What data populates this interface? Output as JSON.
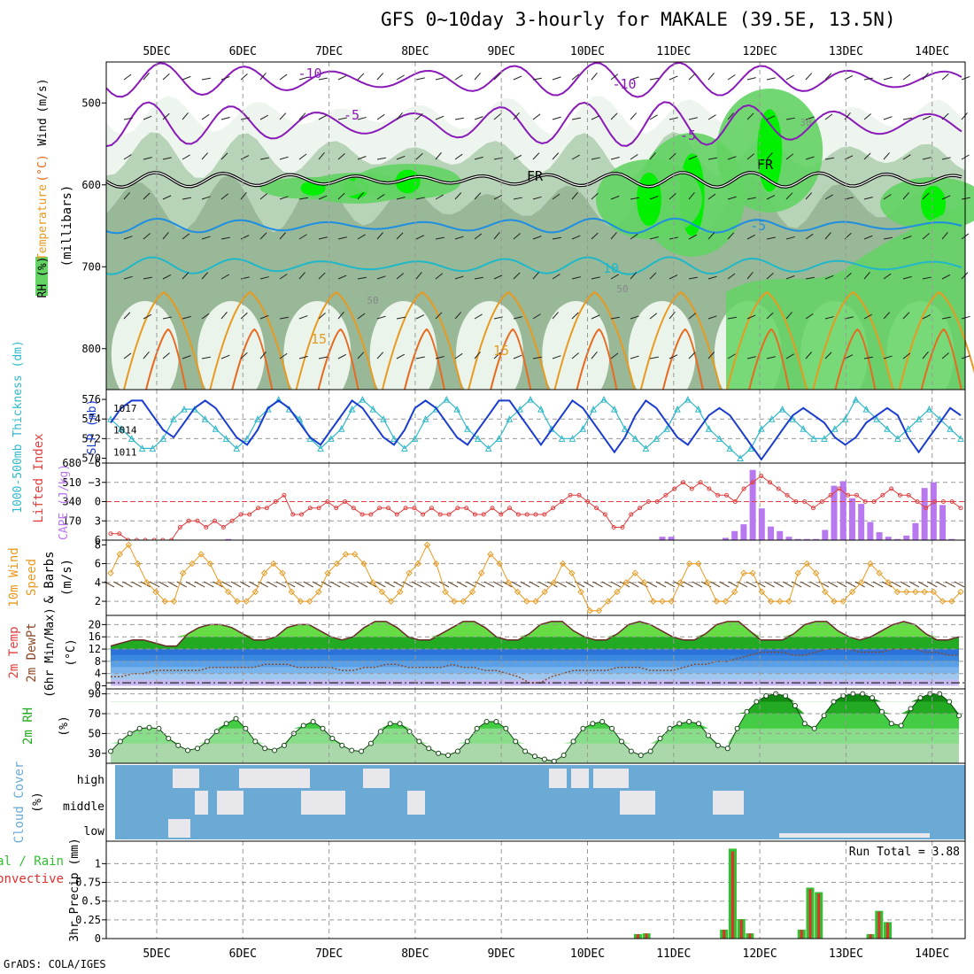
{
  "title": "GFS 0~10day 3-hourly for MAKALE (39.5E, 13.5N)",
  "credit": "GrADS: COLA/IGES",
  "dates": [
    "5DEC",
    "6DEC",
    "7DEC",
    "8DEC",
    "9DEC",
    "10DEC",
    "11DEC",
    "12DEC",
    "13DEC",
    "14DEC"
  ],
  "colors": {
    "rh_light": "#e8f4e8",
    "rh_mid": "#b8d4b8",
    "rh_dark": "#a8c2a8",
    "rh_green": "#63d363",
    "rh_bright": "#00f000",
    "temp_purple": "#8a1ab8",
    "temp_blue": "#1e8ee0",
    "temp_cyan": "#20b8c8",
    "temp_orange": "#e89a20",
    "temp_red": "#e86a20",
    "slp": "#1a3cd0",
    "thickness": "#30b8c8",
    "lifted": "#e04040",
    "cape": "#b878f0",
    "wind10": "#e89a20",
    "cloud_bg": "#6aaad4",
    "cloud_fill": "#e8e8ec",
    "precip_green": "#30c030",
    "precip_red": "#e03030"
  },
  "chart_data": [
    {
      "type": "area",
      "name": "upper-air",
      "ylabel_parts": [
        "RH (%)",
        "Temperature",
        "(°C)",
        "Wind",
        "(m/s)"
      ],
      "ylabel2": "(millibars)",
      "yticks": [
        500,
        600,
        700,
        800
      ],
      "ylim": [
        850,
        450
      ],
      "contour_labels": [
        {
          "text": "-10",
          "pos": "top-left"
        },
        {
          "text": "-10",
          "pos": "top-mid"
        },
        {
          "text": "-5",
          "pos": "upper-left"
        },
        {
          "text": "-5",
          "pos": "upper-mid"
        },
        {
          "text": "FR",
          "pos": "mid-left"
        },
        {
          "text": "FR",
          "pos": "mid-right"
        },
        {
          "text": "-5",
          "pos": "lower-right"
        },
        {
          "text": "10",
          "pos": "lower-right"
        },
        {
          "text": "15",
          "pos": "bottom-left"
        },
        {
          "text": "15",
          "pos": "bottom-mid"
        },
        {
          "text": "30",
          "pos": "right"
        },
        {
          "text": "50",
          "pos": "left"
        },
        {
          "text": "50",
          "pos": "mid"
        }
      ]
    },
    {
      "type": "line",
      "name": "slp-thickness",
      "ylabel_left": "1000-500mb Thickness (dm)",
      "ylabel_right": "SLP (mb)",
      "yticks_left": [
        570,
        572,
        574,
        576
      ],
      "yticks_right": [
        1011,
        1014,
        1017
      ],
      "slp": [
        1015,
        1017,
        1018,
        1018,
        1016,
        1014,
        1013,
        1015,
        1017,
        1018,
        1017,
        1015,
        1013,
        1012,
        1014,
        1017,
        1018,
        1017,
        1015,
        1013,
        1012,
        1014,
        1016,
        1018,
        1017,
        1015,
        1013,
        1012,
        1014,
        1017,
        1018,
        1017,
        1015,
        1013,
        1012,
        1014,
        1016,
        1018,
        1018,
        1016,
        1014,
        1012,
        1014,
        1016,
        1018,
        1017,
        1015,
        1013,
        1011,
        1013,
        1016,
        1018,
        1017,
        1015,
        1013,
        1012,
        1014,
        1016,
        1017,
        1016,
        1014,
        1012,
        1010,
        1012,
        1014,
        1016,
        1017,
        1016,
        1015,
        1013,
        1012,
        1013,
        1015,
        1016,
        1017,
        1016,
        1013,
        1011,
        1013,
        1015,
        1017,
        1016
      ],
      "thickness": [
        574,
        573,
        572,
        571,
        571,
        572,
        574,
        575,
        575,
        574,
        573,
        572,
        571,
        572,
        574,
        575,
        576,
        575,
        574,
        572,
        571,
        572,
        573,
        575,
        576,
        575,
        574,
        572,
        571,
        572,
        574,
        575,
        576,
        575,
        573,
        572,
        571,
        572,
        574,
        575,
        576,
        575,
        573,
        572,
        572,
        573,
        575,
        576,
        575,
        573,
        572,
        571,
        572,
        573,
        575,
        576,
        575,
        573,
        572,
        571,
        570,
        571,
        573,
        574,
        575,
        574,
        573,
        572,
        572,
        573,
        574,
        576,
        575,
        574,
        573,
        572,
        573,
        574,
        575,
        574,
        573,
        572
      ]
    },
    {
      "type": "bar",
      "name": "cape-lifted",
      "ylabel_left": "Lifted Index",
      "ylabel_right": "CAPE (J/kg)",
      "yticks_left": [
        -6,
        -3,
        0,
        3,
        6
      ],
      "yticks_right": [
        170,
        340,
        510,
        680
      ],
      "lifted_index": [
        5,
        5,
        6,
        6,
        6,
        6,
        6,
        6,
        4,
        3,
        3,
        4,
        3,
        4,
        3,
        2,
        2,
        1,
        1,
        0,
        -1,
        2,
        2,
        1,
        1,
        0,
        1,
        0,
        1,
        2,
        2,
        1,
        1,
        2,
        1,
        1,
        2,
        1,
        2,
        2,
        1,
        1,
        2,
        2,
        1,
        2,
        1,
        2,
        2,
        2,
        2,
        1,
        0,
        -1,
        -1,
        0,
        1,
        2,
        4,
        4,
        2,
        1,
        0,
        0,
        -1,
        -2,
        -3,
        -2,
        -3,
        -2,
        -1,
        -1,
        0,
        -2,
        -3,
        -4,
        -3,
        -2,
        -1,
        0,
        0,
        1,
        0,
        -1,
        -2,
        -1,
        -1,
        0,
        0,
        -1,
        -2,
        -1,
        -1,
        0,
        1,
        0,
        0,
        0,
        1
      ],
      "cape": [
        0,
        0,
        0,
        0,
        0,
        0,
        0,
        0,
        0,
        0,
        0,
        0,
        0,
        10,
        0,
        0,
        0,
        0,
        0,
        0,
        0,
        0,
        0,
        0,
        0,
        0,
        0,
        0,
        0,
        0,
        0,
        0,
        0,
        0,
        0,
        0,
        0,
        0,
        0,
        0,
        0,
        0,
        0,
        0,
        0,
        0,
        0,
        0,
        0,
        0,
        0,
        0,
        0,
        0,
        0,
        0,
        0,
        0,
        0,
        0,
        0,
        30,
        30,
        0,
        0,
        0,
        0,
        0,
        20,
        80,
        140,
        620,
        280,
        120,
        80,
        30,
        10,
        10,
        10,
        90,
        480,
        520,
        370,
        320,
        160,
        70,
        30,
        10,
        40,
        150,
        460,
        510,
        310,
        10,
        0
      ]
    },
    {
      "type": "line",
      "name": "wind10m",
      "ylabel": "10m Wind Speed & Barbs (m/s)",
      "yticks": [
        2,
        4,
        6,
        8
      ],
      "values": [
        5,
        7,
        8,
        6,
        4,
        3,
        2,
        2,
        5,
        6,
        7,
        6,
        4,
        3,
        2,
        2,
        3,
        5,
        6,
        5,
        3,
        2,
        2,
        3,
        5,
        6,
        7,
        7,
        6,
        4,
        3,
        2,
        3,
        5,
        6,
        8,
        6,
        3,
        2,
        2,
        3,
        5,
        7,
        6,
        4,
        3,
        2,
        2,
        3,
        4,
        6,
        5,
        3,
        1,
        1,
        2,
        3,
        4,
        5,
        4,
        2,
        2,
        2,
        4,
        6,
        6,
        4,
        2,
        2,
        3,
        5,
        5,
        3,
        2,
        2,
        2,
        5,
        6,
        5,
        3,
        2,
        2,
        3,
        4,
        6,
        5,
        4,
        3,
        3,
        3,
        3,
        3,
        2,
        2,
        3
      ]
    },
    {
      "type": "area",
      "name": "temp2m",
      "ylabel": "2m Temp 2m DewPt (6hr Min/Max) (°C)",
      "yticks": [
        0,
        4,
        8,
        12,
        16,
        20
      ],
      "temp": [
        13,
        14,
        15,
        15,
        14,
        13,
        13,
        17,
        19,
        20,
        20,
        19,
        17,
        15,
        15,
        16,
        19,
        20,
        20,
        18,
        16,
        15,
        16,
        19,
        21,
        21,
        19,
        16,
        15,
        15,
        17,
        19,
        21,
        21,
        19,
        16,
        15,
        15,
        17,
        20,
        21,
        21,
        18,
        16,
        15,
        15,
        17,
        20,
        21,
        20,
        18,
        16,
        15,
        15,
        17,
        20,
        21,
        21,
        18,
        15,
        15,
        15,
        17,
        20,
        21,
        21,
        18,
        16,
        15,
        16,
        18,
        20,
        21,
        20,
        17,
        15,
        15,
        16
      ],
      "dewpt": [
        3,
        3,
        4,
        4,
        5,
        5,
        5,
        5,
        5,
        6,
        6,
        6,
        6,
        6,
        7,
        7,
        7,
        6,
        6,
        6,
        6,
        5,
        5,
        6,
        6,
        7,
        7,
        6,
        6,
        6,
        6,
        7,
        6,
        6,
        5,
        5,
        4,
        3,
        1,
        1,
        3,
        4,
        5,
        5,
        5,
        5,
        6,
        6,
        6,
        5,
        5,
        5,
        6,
        7,
        7,
        8,
        8,
        9,
        10,
        11,
        11,
        11,
        10,
        10,
        11,
        12,
        12,
        12,
        11,
        11,
        11,
        12,
        12,
        12,
        11,
        11,
        10,
        10
      ]
    },
    {
      "type": "area",
      "name": "rh2m",
      "ylabel": "2m RH (%)",
      "yticks": [
        30,
        50,
        70,
        90
      ],
      "values": [
        32,
        42,
        50,
        55,
        56,
        55,
        45,
        38,
        33,
        35,
        42,
        52,
        60,
        65,
        55,
        42,
        35,
        33,
        38,
        50,
        58,
        62,
        55,
        45,
        38,
        33,
        32,
        40,
        52,
        60,
        60,
        52,
        42,
        35,
        30,
        28,
        32,
        42,
        55,
        62,
        62,
        55,
        42,
        32,
        27,
        24,
        22,
        28,
        42,
        55,
        60,
        62,
        55,
        42,
        32,
        28,
        32,
        45,
        55,
        60,
        62,
        60,
        48,
        38,
        35,
        55,
        72,
        82,
        88,
        90,
        88,
        78,
        60,
        55,
        68,
        82,
        88,
        90,
        90,
        86,
        72,
        60,
        58,
        75,
        86,
        90,
        90,
        82,
        68
      ]
    },
    {
      "type": "bar",
      "name": "cloud-cover",
      "ylabel": "Cloud Cover (%)",
      "levels": [
        "high",
        "middle",
        "low"
      ]
    },
    {
      "type": "bar",
      "name": "precip",
      "ylabel_left": "Total / Rain",
      "ylabel_left2": "Convective",
      "ylabel": "3hr Precip (mm)",
      "yticks": [
        0,
        0.25,
        0.5,
        0.75,
        1
      ],
      "yticklabels": [
        "0",
        "0.25",
        "0.5",
        "0.75",
        "1"
      ],
      "run_total_label": "Run Total = 3.88",
      "bars": [
        {
          "day": 6.05,
          "value": 0.06
        },
        {
          "day": 6.15,
          "value": 0.07
        },
        {
          "day": 7.05,
          "value": 0.12
        },
        {
          "day": 7.15,
          "value": 1.2
        },
        {
          "day": 7.25,
          "value": 0.26
        },
        {
          "day": 7.35,
          "value": 0.07
        },
        {
          "day": 7.95,
          "value": 0.12
        },
        {
          "day": 8.05,
          "value": 0.68
        },
        {
          "day": 8.15,
          "value": 0.62
        },
        {
          "day": 8.75,
          "value": 0.06
        },
        {
          "day": 8.85,
          "value": 0.37
        },
        {
          "day": 8.95,
          "value": 0.22
        }
      ]
    }
  ]
}
